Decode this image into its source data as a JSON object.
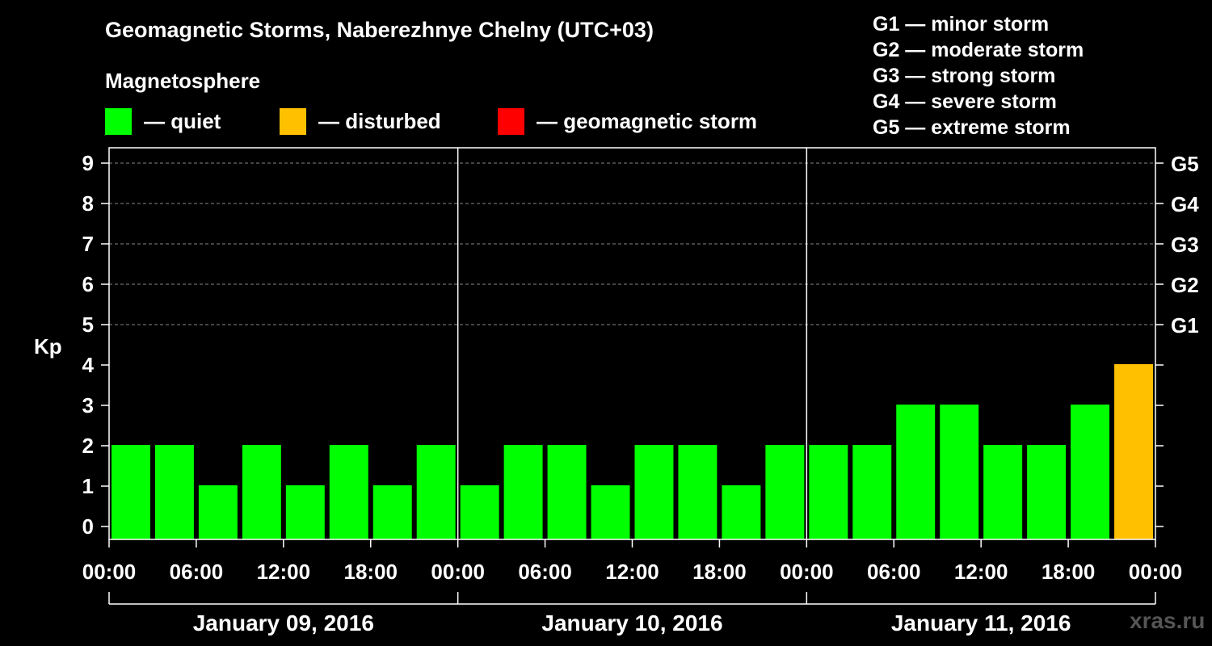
{
  "title": "Geomagnetic Storms, Naberezhnye Chelny (UTC+03)",
  "subtitle": "Magnetosphere",
  "legend": [
    {
      "label": "— quiet",
      "color": "#00ff00"
    },
    {
      "label": "— disturbed",
      "color": "#ffc000"
    },
    {
      "label": "— geomagnetic storm",
      "color": "#ff0000"
    }
  ],
  "storm_scale": [
    "G1 — minor storm",
    "G2 — moderate storm",
    "G3 — strong storm",
    "G4 — severe storm",
    "G5 — extreme storm"
  ],
  "watermark": "xras.ru",
  "chart_data": {
    "type": "bar",
    "title": "Geomagnetic Storms, Naberezhnye Chelny (UTC+03)",
    "ylabel": "Kp",
    "ylim": [
      0,
      9
    ],
    "yticks": [
      0,
      1,
      2,
      3,
      4,
      5,
      6,
      7,
      8,
      9
    ],
    "right_ticks": [
      {
        "kp": 5,
        "label": "G1"
      },
      {
        "kp": 6,
        "label": "G2"
      },
      {
        "kp": 7,
        "label": "G3"
      },
      {
        "kp": 8,
        "label": "G4"
      },
      {
        "kp": 9,
        "label": "G5"
      }
    ],
    "x_tick_labels": [
      "00:00",
      "06:00",
      "12:00",
      "18:00",
      "00:00",
      "06:00",
      "12:00",
      "18:00",
      "00:00",
      "06:00",
      "12:00",
      "18:00",
      "00:00"
    ],
    "days": [
      "January 09, 2016",
      "January 10, 2016",
      "January 11, 2016"
    ],
    "interval_hours": 3,
    "values": [
      2,
      2,
      1,
      2,
      1,
      2,
      1,
      2,
      1,
      2,
      2,
      1,
      2,
      2,
      1,
      2,
      2,
      2,
      3,
      3,
      2,
      2,
      3,
      4
    ],
    "colors": {
      "quiet": "#00ff00",
      "disturbed": "#ffc000",
      "storm": "#ff0000"
    }
  }
}
